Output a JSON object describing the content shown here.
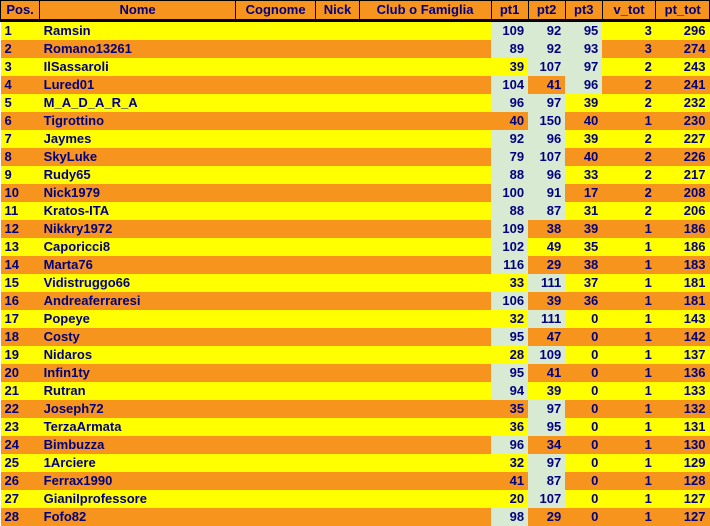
{
  "table": {
    "header_bg": "#f7941d",
    "row_colors": {
      "odd": "#ffff00",
      "even": "#f7941d"
    },
    "pt_top_bg": "#d9ead3",
    "columns": [
      {
        "key": "pos",
        "label": "Pos.",
        "cls": "pos"
      },
      {
        "key": "nome",
        "label": "Nome",
        "cls": "txt"
      },
      {
        "key": "cognome",
        "label": "Cognome",
        "cls": "txt"
      },
      {
        "key": "nick",
        "label": "Nick",
        "cls": "txt"
      },
      {
        "key": "club",
        "label": "Club o Famiglia",
        "cls": "txt"
      },
      {
        "key": "pt1",
        "label": "pt1",
        "cls": "num"
      },
      {
        "key": "pt2",
        "label": "pt2",
        "cls": "num"
      },
      {
        "key": "pt3",
        "label": "pt3",
        "cls": "num"
      },
      {
        "key": "v_tot",
        "label": "v_tot",
        "cls": "num"
      },
      {
        "key": "pt_tot",
        "label": "pt_tot",
        "cls": "num"
      }
    ],
    "rows": [
      {
        "pos": 1,
        "nome": "Ramsin",
        "pt1": 109,
        "pt2": 92,
        "pt3": 95,
        "v_tot": 3,
        "pt_tot": 296,
        "top": [
          1,
          2,
          3
        ]
      },
      {
        "pos": 2,
        "nome": "Romano13261",
        "pt1": 89,
        "pt2": 92,
        "pt3": 93,
        "v_tot": 3,
        "pt_tot": 274,
        "top": [
          1,
          2,
          3
        ]
      },
      {
        "pos": 3,
        "nome": "IlSassaroli",
        "pt1": 39,
        "pt2": 107,
        "pt3": 97,
        "v_tot": 2,
        "pt_tot": 243,
        "top": [
          2,
          3
        ]
      },
      {
        "pos": 4,
        "nome": "Lured01",
        "pt1": 104,
        "pt2": 41,
        "pt3": 96,
        "v_tot": 2,
        "pt_tot": 241,
        "top": [
          1,
          3
        ]
      },
      {
        "pos": 5,
        "nome": "M_A_D_A_R_A",
        "pt1": 96,
        "pt2": 97,
        "pt3": 39,
        "v_tot": 2,
        "pt_tot": 232,
        "top": [
          1,
          2
        ]
      },
      {
        "pos": 6,
        "nome": "Tigrottino",
        "pt1": 40,
        "pt2": 150,
        "pt3": 40,
        "v_tot": 1,
        "pt_tot": 230,
        "top": [
          2
        ]
      },
      {
        "pos": 7,
        "nome": "Jaymes",
        "pt1": 92,
        "pt2": 96,
        "pt3": 39,
        "v_tot": 2,
        "pt_tot": 227,
        "top": [
          1,
          2
        ]
      },
      {
        "pos": 8,
        "nome": "SkyLuke",
        "pt1": 79,
        "pt2": 107,
        "pt3": 40,
        "v_tot": 2,
        "pt_tot": 226,
        "top": [
          1,
          2
        ]
      },
      {
        "pos": 9,
        "nome": "Rudy65",
        "pt1": 88,
        "pt2": 96,
        "pt3": 33,
        "v_tot": 2,
        "pt_tot": 217,
        "top": [
          1,
          2
        ]
      },
      {
        "pos": 10,
        "nome": "Nick1979",
        "pt1": 100,
        "pt2": 91,
        "pt3": 17,
        "v_tot": 2,
        "pt_tot": 208,
        "top": [
          1,
          2
        ]
      },
      {
        "pos": 11,
        "nome": "Kratos-ITA",
        "pt1": 88,
        "pt2": 87,
        "pt3": 31,
        "v_tot": 2,
        "pt_tot": 206,
        "top": [
          1,
          2
        ]
      },
      {
        "pos": 12,
        "nome": "Nikkry1972",
        "pt1": 109,
        "pt2": 38,
        "pt3": 39,
        "v_tot": 1,
        "pt_tot": 186,
        "top": [
          1
        ]
      },
      {
        "pos": 13,
        "nome": "Caporicci8",
        "pt1": 102,
        "pt2": 49,
        "pt3": 35,
        "v_tot": 1,
        "pt_tot": 186,
        "top": [
          1
        ]
      },
      {
        "pos": 14,
        "nome": "Marta76",
        "pt1": 116,
        "pt2": 29,
        "pt3": 38,
        "v_tot": 1,
        "pt_tot": 183,
        "top": [
          1
        ]
      },
      {
        "pos": 15,
        "nome": "Vidistruggo66",
        "pt1": 33,
        "pt2": 111,
        "pt3": 37,
        "v_tot": 1,
        "pt_tot": 181,
        "top": [
          2
        ]
      },
      {
        "pos": 16,
        "nome": "Andreaferraresi",
        "pt1": 106,
        "pt2": 39,
        "pt3": 36,
        "v_tot": 1,
        "pt_tot": 181,
        "top": [
          1
        ]
      },
      {
        "pos": 17,
        "nome": "Popeye",
        "pt1": 32,
        "pt2": 111,
        "pt3": 0,
        "v_tot": 1,
        "pt_tot": 143,
        "top": [
          2
        ]
      },
      {
        "pos": 18,
        "nome": "Costy",
        "pt1": 95,
        "pt2": 47,
        "pt3": 0,
        "v_tot": 1,
        "pt_tot": 142,
        "top": [
          1
        ]
      },
      {
        "pos": 19,
        "nome": "Nidaros",
        "pt1": 28,
        "pt2": 109,
        "pt3": 0,
        "v_tot": 1,
        "pt_tot": 137,
        "top": [
          2
        ]
      },
      {
        "pos": 20,
        "nome": "Infin1ty",
        "pt1": 95,
        "pt2": 41,
        "pt3": 0,
        "v_tot": 1,
        "pt_tot": 136,
        "top": [
          1
        ]
      },
      {
        "pos": 21,
        "nome": "Rutran",
        "pt1": 94,
        "pt2": 39,
        "pt3": 0,
        "v_tot": 1,
        "pt_tot": 133,
        "top": [
          1
        ]
      },
      {
        "pos": 22,
        "nome": "Joseph72",
        "pt1": 35,
        "pt2": 97,
        "pt3": 0,
        "v_tot": 1,
        "pt_tot": 132,
        "top": [
          2
        ]
      },
      {
        "pos": 23,
        "nome": "TerzaArmata",
        "pt1": 36,
        "pt2": 95,
        "pt3": 0,
        "v_tot": 1,
        "pt_tot": 131,
        "top": [
          2
        ]
      },
      {
        "pos": 24,
        "nome": "Bimbuzza",
        "pt1": 96,
        "pt2": 34,
        "pt3": 0,
        "v_tot": 1,
        "pt_tot": 130,
        "top": [
          1
        ]
      },
      {
        "pos": 25,
        "nome": "1Arciere",
        "pt1": 32,
        "pt2": 97,
        "pt3": 0,
        "v_tot": 1,
        "pt_tot": 129,
        "top": [
          2
        ]
      },
      {
        "pos": 26,
        "nome": "Ferrax1990",
        "pt1": 41,
        "pt2": 87,
        "pt3": 0,
        "v_tot": 1,
        "pt_tot": 128,
        "top": [
          2
        ]
      },
      {
        "pos": 27,
        "nome": "GianiIprofessore",
        "pt1": 20,
        "pt2": 107,
        "pt3": 0,
        "v_tot": 1,
        "pt_tot": 127,
        "top": [
          2
        ]
      },
      {
        "pos": 28,
        "nome": "Fofo82",
        "pt1": 98,
        "pt2": 29,
        "pt3": 0,
        "v_tot": 1,
        "pt_tot": 127,
        "top": [
          1
        ]
      }
    ]
  }
}
